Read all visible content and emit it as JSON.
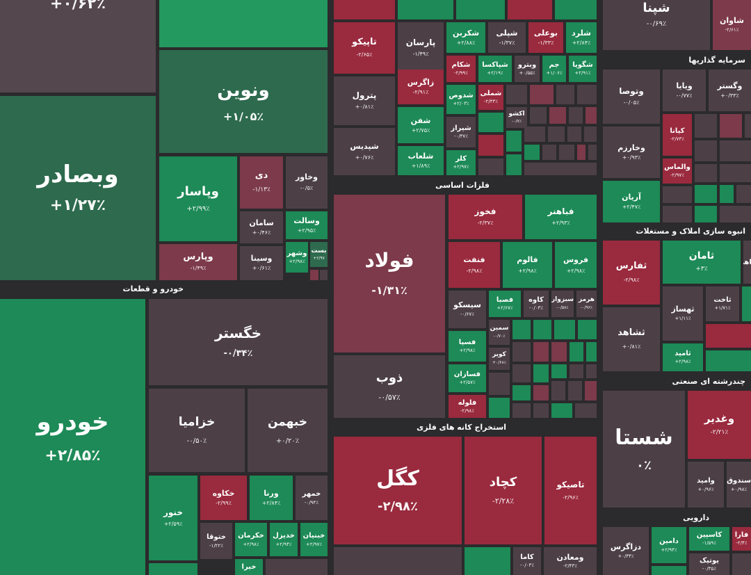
{
  "sectors": [
    {
      "name": "خودرو و قطعات"
    },
    {
      "name": "فلزات اساسی"
    },
    {
      "name": "استخراج کانه های فلزی"
    },
    {
      "name": "سرمایه گذاریها"
    },
    {
      "name": "انبوه سازی املاک و مستغلات"
    },
    {
      "name": "چندرشته ای صنعتی"
    },
    {
      "name": "دارویی"
    }
  ],
  "tiles": [
    {
      "name": "",
      "change": "+۰/۶۲٪"
    },
    {
      "name": "وبصادر",
      "change": "+۱/۲۷٪"
    },
    {
      "name": "ونوین",
      "change": "+۱/۰۵٪"
    },
    {
      "name": "وپاسار",
      "change": "+۲/۹۹٪"
    },
    {
      "name": "دی",
      "change": "-۱/۱۳٪"
    },
    {
      "name": "وخاور",
      "change": "-۰/۵٪"
    },
    {
      "name": "سامان",
      "change": "+۰/۴۶٪"
    },
    {
      "name": "وسالت",
      "change": "+۲/۹۵٪"
    },
    {
      "name": "وپارس",
      "change": "-۱/۴۹٪"
    },
    {
      "name": "وسینا",
      "change": "+۰/۶۱٪"
    },
    {
      "name": "وشهر",
      "change": "+۲/۹۸٪"
    },
    {
      "name": "بست",
      "change": "+۲/۹۷"
    },
    {
      "name": "تاپیکو",
      "change": "-۲/۶۵٪"
    },
    {
      "name": "پارسان",
      "change": "-۱/۴۹٪"
    },
    {
      "name": "شکربن",
      "change": "+۲/۸۸٪"
    },
    {
      "name": "شپلی",
      "change": "-۱/۳۷٪"
    },
    {
      "name": "بوعلی",
      "change": "-۱/۳۳٪"
    },
    {
      "name": "شلرد",
      "change": "+۲/۸۴٪"
    },
    {
      "name": "شکام",
      "change": "-۲/۹۹٪"
    },
    {
      "name": "شپاکسا",
      "change": "+۲/۱۹٪"
    },
    {
      "name": "وبترو",
      "change": "+۰/۵۵٪"
    },
    {
      "name": "جم",
      "change": "+۱/۰۶٪"
    },
    {
      "name": "شگویا",
      "change": "+۲/۹۱٪"
    },
    {
      "name": "پترول",
      "change": "+۰/۸۱٪"
    },
    {
      "name": "زاگرس",
      "change": "-۲/۹۱٪"
    },
    {
      "name": "شدوص",
      "change": "+۲/۰۳٪"
    },
    {
      "name": "شملی",
      "change": "-۲/۳۳٪"
    },
    {
      "name": "شفن",
      "change": "+۲/۷۵٪"
    },
    {
      "name": "شیراز",
      "change": "-۰/۳۷٪"
    },
    {
      "name": "اکشو",
      "change": "-۰/۷٪"
    },
    {
      "name": "شپدیس",
      "change": "+۰/۷۶٪"
    },
    {
      "name": "شلعاب",
      "change": "+۱/۸۹٪"
    },
    {
      "name": "کلر",
      "change": "+۲/۹۷٪"
    },
    {
      "name": "فولاد",
      "change": "-۱/۳۱٪"
    },
    {
      "name": "فخوز",
      "change": "-۲/۳۷٪"
    },
    {
      "name": "فباهنر",
      "change": "+۲/۹۳٪"
    },
    {
      "name": "فنفت",
      "change": "-۲/۹۸٪"
    },
    {
      "name": "فالوم",
      "change": "+۲/۹۸٪"
    },
    {
      "name": "فروس",
      "change": "+۲/۹۸٪"
    },
    {
      "name": "سیسکو",
      "change": "-۰/۶۷٪"
    },
    {
      "name": "فصبا",
      "change": "+۲/۶۷٪"
    },
    {
      "name": "کاوه",
      "change": "-۰/۰۳٪"
    },
    {
      "name": "سبزوار",
      "change": "-۰/۵۸٪"
    },
    {
      "name": "هرمز",
      "change": "-۰/۹۶٪"
    },
    {
      "name": "سمین",
      "change": "-۰/۷۰٪"
    },
    {
      "name": "فسپا",
      "change": "+۲/۹۸٪"
    },
    {
      "name": "کویر",
      "change": "+۰/۶۸٪"
    },
    {
      "name": "ذوب",
      "change": "-۰/۵۷٪"
    },
    {
      "name": "فسازان",
      "change": "+۲/۵۷٪"
    },
    {
      "name": "فلوله",
      "change": "-۲/۹۸٪"
    },
    {
      "name": "خودرو",
      "change": "+۲/۸۵٪"
    },
    {
      "name": "خگستر",
      "change": "-۰/۳۴٪"
    },
    {
      "name": "خزامیا",
      "change": "-۰/۵۰٪"
    },
    {
      "name": "خبهمن",
      "change": "+۰/۲۰٪"
    },
    {
      "name": "خنور",
      "change": "+۲/۵۹٪"
    },
    {
      "name": "خکاوه",
      "change": "-۲/۹۹٪"
    },
    {
      "name": "ورنا",
      "change": "+۲/۸۴٪"
    },
    {
      "name": "خمهر",
      "change": "-۰/۹۴٪"
    },
    {
      "name": "ختوقا",
      "change": "-۱/۲۲٪"
    },
    {
      "name": "خکرمان",
      "change": "+۲/۹۸٪"
    },
    {
      "name": "خدیزل",
      "change": "+۲/۹۴٪"
    },
    {
      "name": "خبنیان",
      "change": "+۲/۹۷٪"
    },
    {
      "name": "خیرا",
      "change": ""
    },
    {
      "name": "کگل",
      "change": "-۲/۹۸٪"
    },
    {
      "name": "کچاد",
      "change": "-۲/۲۸٪"
    },
    {
      "name": "تاصیکو",
      "change": "-۲/۹۶٪"
    },
    {
      "name": "کاما",
      "change": "-۰/۰۳٪"
    },
    {
      "name": "ومعادن",
      "change": "-۲/۴۳٪"
    },
    {
      "name": "شپنا",
      "change": "-۰/۶۹٪"
    },
    {
      "name": "شاوان",
      "change": "-۲/۶۱٪"
    },
    {
      "name": "وتوصا",
      "change": "-۰/۰۵٪"
    },
    {
      "name": "ویایا",
      "change": "-۰/۷۷٪"
    },
    {
      "name": "وگستر",
      "change": "+۰/۳۳٪"
    },
    {
      "name": "کیانا",
      "change": "-۲/۷۳٪"
    },
    {
      "name": "وخارزم",
      "change": "+۰/۹۳٪"
    },
    {
      "name": "والماس",
      "change": "-۲/۹۷٪"
    },
    {
      "name": "آریان",
      "change": "+۲/۴۷٪"
    },
    {
      "name": "ثفارس",
      "change": "-۲/۹۸٪"
    },
    {
      "name": "ثامان",
      "change": "+۳٪"
    },
    {
      "name": "ثباهنر",
      "change": ""
    },
    {
      "name": "ثهساز",
      "change": "+۱/۱۱٪"
    },
    {
      "name": "ثاخت",
      "change": "+۱/۷۱٪"
    },
    {
      "name": "ثشاهد",
      "change": "+۰/۸۱٪"
    },
    {
      "name": "ثامید",
      "change": "+۲/۹۸٪"
    },
    {
      "name": "شستا",
      "change": "۰٪"
    },
    {
      "name": "وغدیر",
      "change": "-۲/۲۱٪"
    },
    {
      "name": "وامید",
      "change": "+۰/۹۶٪"
    },
    {
      "name": "سندوق",
      "change": "+۰/۹۸٪"
    },
    {
      "name": "دزاگرس",
      "change": "+۰/۳۴٪"
    },
    {
      "name": "دامین",
      "change": "+۲/۹۴٪"
    },
    {
      "name": "کاسپین",
      "change": "-۱/۵۹٪"
    },
    {
      "name": "فارا",
      "change": "-۲/۴٪"
    },
    {
      "name": "یوتیک",
      "change": "-۰/۳۵٪"
    }
  ]
}
